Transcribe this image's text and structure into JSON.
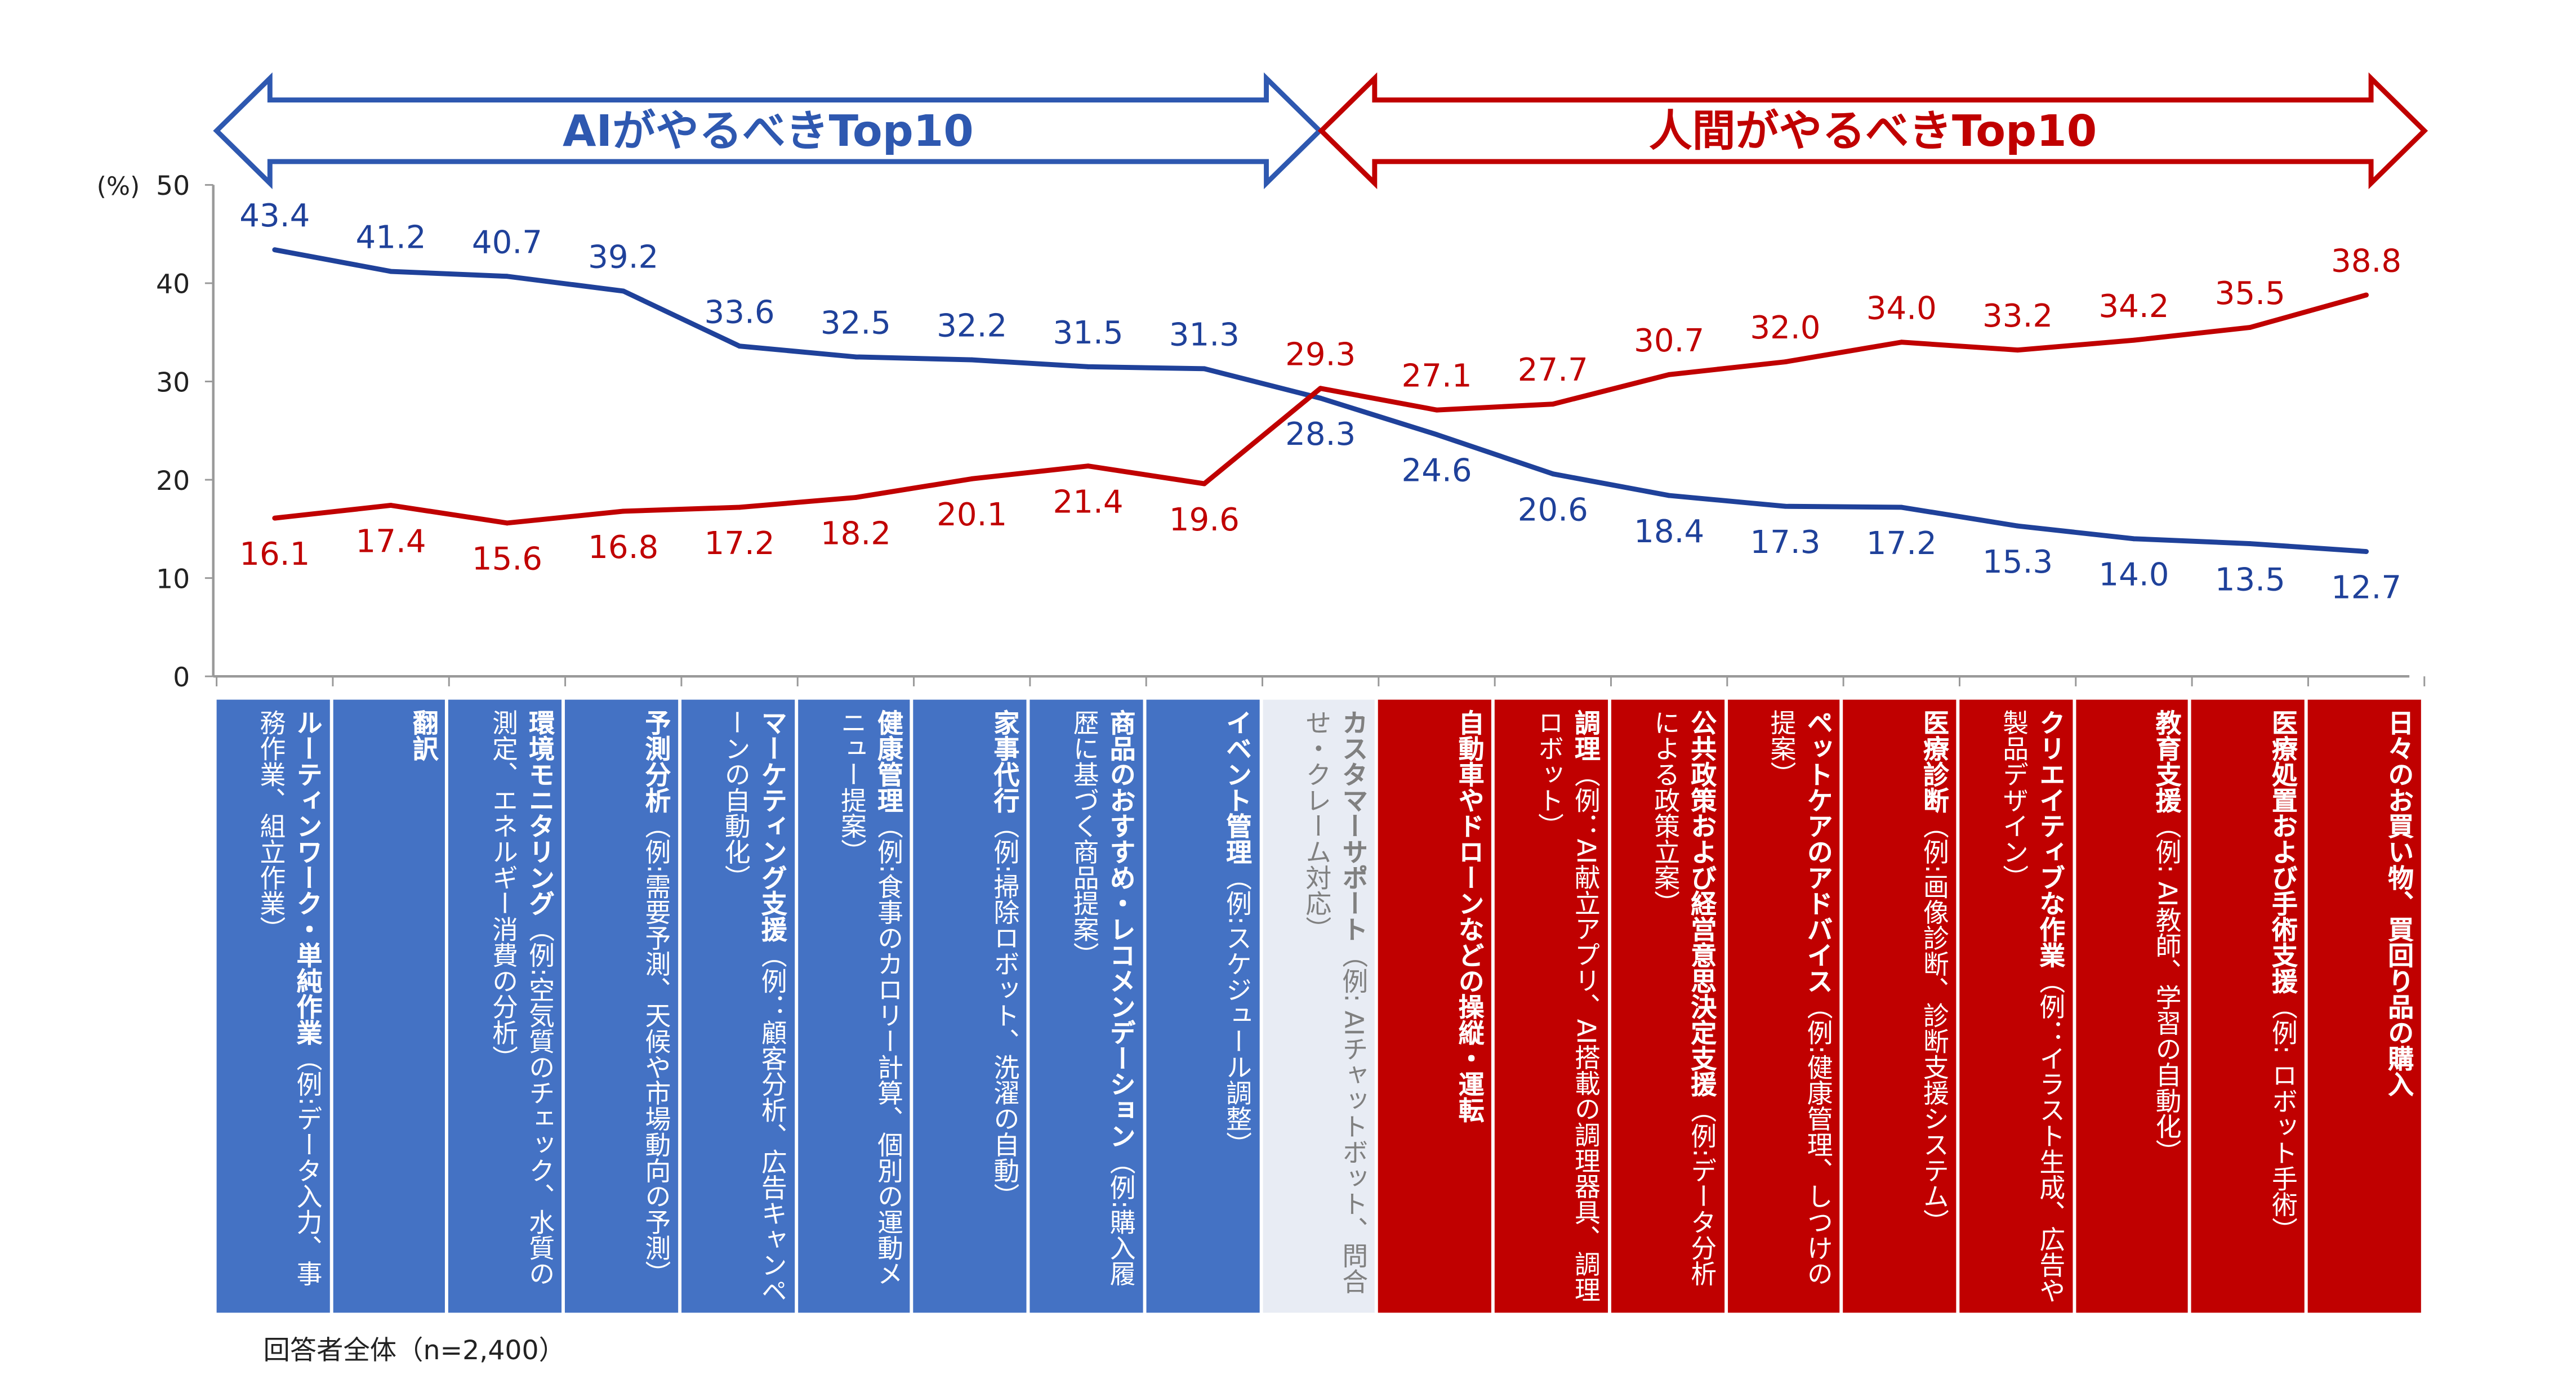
{
  "chart_data": {
    "type": "line",
    "unit_label": "(%)",
    "ylim": [
      0,
      50
    ],
    "yticks": [
      0,
      10,
      20,
      30,
      40,
      50
    ],
    "grid": false,
    "banners": [
      {
        "label": "AIがやるべきTop10",
        "color": "#2E58B0"
      },
      {
        "label": "人間がやるべきTop10",
        "color": "#C00000"
      }
    ],
    "categories": [
      {
        "title": "ルーティンワーク・単純作業",
        "example": "（例:データ入力、事務作業、組立作業）",
        "group": "ai"
      },
      {
        "title": "翻訳",
        "example": "",
        "group": "ai"
      },
      {
        "title": "環境モニタリング",
        "example": "（例:空気質のチェック、水質の測定、エネルギー消費の分析）",
        "group": "ai"
      },
      {
        "title": "予測分析",
        "example": "（例:需要予測、天候や市場動向の予測）",
        "group": "ai"
      },
      {
        "title": "マーケティング支援",
        "example": "（例：顧客分析、広告キャンペーンの自動化）",
        "group": "ai"
      },
      {
        "title": "健康管理",
        "example": "（例:食事のカロリー計算、個別の運動メニュー提案）",
        "group": "ai"
      },
      {
        "title": "家事代行",
        "example": "（例:掃除ロボット、洗濯の自動）",
        "group": "ai"
      },
      {
        "title": "商品のおすすめ・レコメンデーション",
        "example": "（例:購入履歴に基づく商品提案）",
        "group": "ai"
      },
      {
        "title": "イベント管理",
        "example": "（例:スケジュール調整）",
        "group": "ai"
      },
      {
        "title": "カスタマーサポート",
        "example": "（例: AIチャットボット、問合せ・クレーム対応）",
        "group": "mid"
      },
      {
        "title": "自動車やドローンなどの操縦・運転",
        "example": "",
        "group": "hu"
      },
      {
        "title": "調理",
        "example": "（例：AI献立アプリ、AI搭載の調理器具、調理ロボット）",
        "group": "hu"
      },
      {
        "title": "公共政策および経営意思決定支援",
        "example": "（例:データ分析による政策立案）",
        "group": "hu"
      },
      {
        "title": "ペットケアのアドバイス",
        "example": "（例:健康管理、しつけの提案）",
        "group": "hu"
      },
      {
        "title": "医療診断",
        "example": "（例:画像診断、診断支援システム）",
        "group": "hu"
      },
      {
        "title": "クリエイティブな作業",
        "example": "（例：イラスト生成、広告や製品デザイン）",
        "group": "hu"
      },
      {
        "title": "教育支援",
        "example": "（例: AI教師、学習の自動化）",
        "group": "hu"
      },
      {
        "title": "医療処置および手術支援",
        "example": "（例: ロボット手術）",
        "group": "hu"
      },
      {
        "title": "日々のお買い物、買回り品の購入",
        "example": "",
        "group": "hu"
      }
    ],
    "series": [
      {
        "color": "#1F419A",
        "values": [
          43.4,
          41.2,
          40.7,
          39.2,
          33.6,
          32.5,
          32.2,
          31.5,
          31.3,
          28.3,
          24.6,
          20.6,
          18.4,
          17.3,
          17.2,
          15.3,
          14.0,
          13.5,
          12.7
        ]
      },
      {
        "color": "#C00000",
        "values": [
          16.1,
          17.4,
          15.6,
          16.8,
          17.2,
          18.2,
          20.1,
          21.4,
          19.6,
          29.3,
          27.1,
          27.7,
          30.7,
          32.0,
          34.0,
          33.2,
          34.2,
          35.5,
          38.8
        ]
      }
    ],
    "note": "回答者全体（n=2,400）"
  }
}
